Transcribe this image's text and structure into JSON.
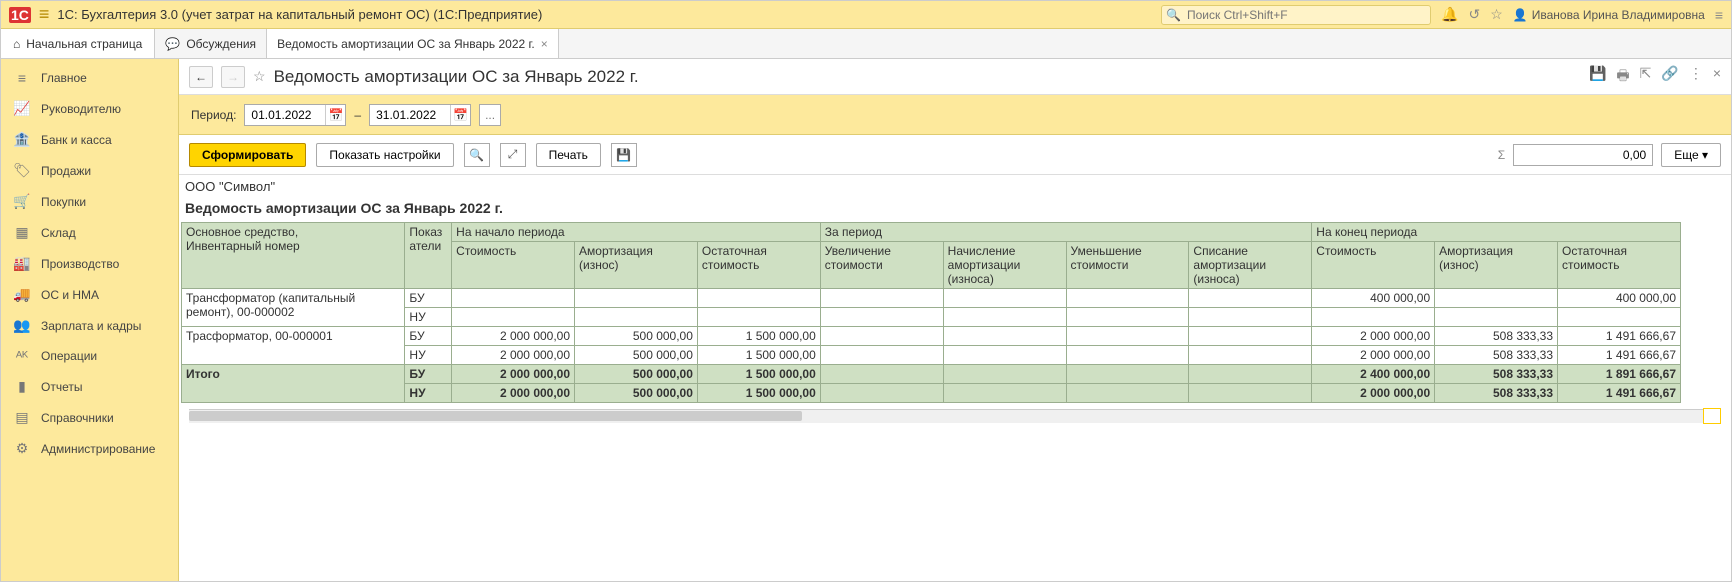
{
  "titlebar": {
    "logo": "1С",
    "title": "1С: Бухгалтерия 3.0 (учет затрат на капитальный ремонт ОС)  (1С:Предприятие)",
    "search_placeholder": "Поиск Ctrl+Shift+F",
    "user": "Иванова Ирина Владимировна"
  },
  "tabs": {
    "home": "Начальная страница",
    "discuss": "Обсуждения",
    "active": "Ведомость амортизации ОС за Январь 2022 г."
  },
  "sidebar": {
    "items": [
      {
        "icon": "≡",
        "label": "Главное"
      },
      {
        "icon": "📈",
        "label": "Руководителю"
      },
      {
        "icon": "🏦",
        "label": "Банк и касса"
      },
      {
        "icon": "🏷",
        "label": "Продажи"
      },
      {
        "icon": "🛒",
        "label": "Покупки"
      },
      {
        "icon": "▦",
        "label": "Склад"
      },
      {
        "icon": "🏭",
        "label": "Производство"
      },
      {
        "icon": "🚚",
        "label": "ОС и НМА"
      },
      {
        "icon": "👥",
        "label": "Зарплата и кадры"
      },
      {
        "icon": "ᴬᴷ",
        "label": "Операции"
      },
      {
        "icon": "▮",
        "label": "Отчеты"
      },
      {
        "icon": "▤",
        "label": "Справочники"
      },
      {
        "icon": "⚙",
        "label": "Администрирование"
      }
    ]
  },
  "page": {
    "title": "Ведомость амортизации ОС за Январь 2022 г."
  },
  "period": {
    "label": "Период:",
    "from": "01.01.2022",
    "dash": "–",
    "to": "31.01.2022",
    "more": "..."
  },
  "toolbar": {
    "form": "Сформировать",
    "show_settings": "Показать настройки",
    "print": "Печать",
    "sum_icon": "Σ",
    "sum_value": "0,00",
    "more": "Еще ▾"
  },
  "report": {
    "org": "ООО \"Символ\"",
    "title": "Ведомость амортизации ОС за Январь 2022 г.",
    "headers": {
      "asset": "Основное средство,\nИнвентарный номер",
      "indic": "Показ\nатели",
      "start": "На начало периода",
      "period": "За период",
      "end": "На конец периода",
      "cols": [
        "Стоимость",
        "Амортизация (износ)",
        "Остаточная стоимость",
        "Увеличение стоимости",
        "Начисление амортизации (износа)",
        "Уменьшение стоимости",
        "Списание амортизации (износа)",
        "Стоимость",
        "Амортизация (износ)",
        "Остаточная стоимость"
      ]
    },
    "rows": [
      {
        "asset": "Трансформатор (капитальный ремонт), 00-000002",
        "ind": "БУ",
        "vals": [
          "",
          "",
          "",
          "",
          "",
          "",
          "",
          "400 000,00",
          "",
          "400 000,00"
        ]
      },
      {
        "asset": "",
        "ind": "НУ",
        "vals": [
          "",
          "",
          "",
          "",
          "",
          "",
          "",
          "",
          "",
          ""
        ]
      },
      {
        "asset": "Трасформатор, 00-000001",
        "ind": "БУ",
        "vals": [
          "2 000 000,00",
          "500 000,00",
          "1 500 000,00",
          "",
          "",
          "",
          "",
          "2 000 000,00",
          "508 333,33",
          "1 491 666,67"
        ]
      },
      {
        "asset": "",
        "ind": "НУ",
        "vals": [
          "2 000 000,00",
          "500 000,00",
          "1 500 000,00",
          "",
          "",
          "",
          "",
          "2 000 000,00",
          "508 333,33",
          "1 491 666,67"
        ]
      }
    ],
    "totals": [
      {
        "label": "Итого",
        "ind": "БУ",
        "vals": [
          "2 000 000,00",
          "500 000,00",
          "1 500 000,00",
          "",
          "",
          "",
          "",
          "2 400 000,00",
          "508 333,33",
          "1 891 666,67"
        ]
      },
      {
        "label": "",
        "ind": "НУ",
        "vals": [
          "2 000 000,00",
          "500 000,00",
          "1 500 000,00",
          "",
          "",
          "",
          "",
          "2 000 000,00",
          "508 333,33",
          "1 491 666,67"
        ]
      }
    ]
  }
}
